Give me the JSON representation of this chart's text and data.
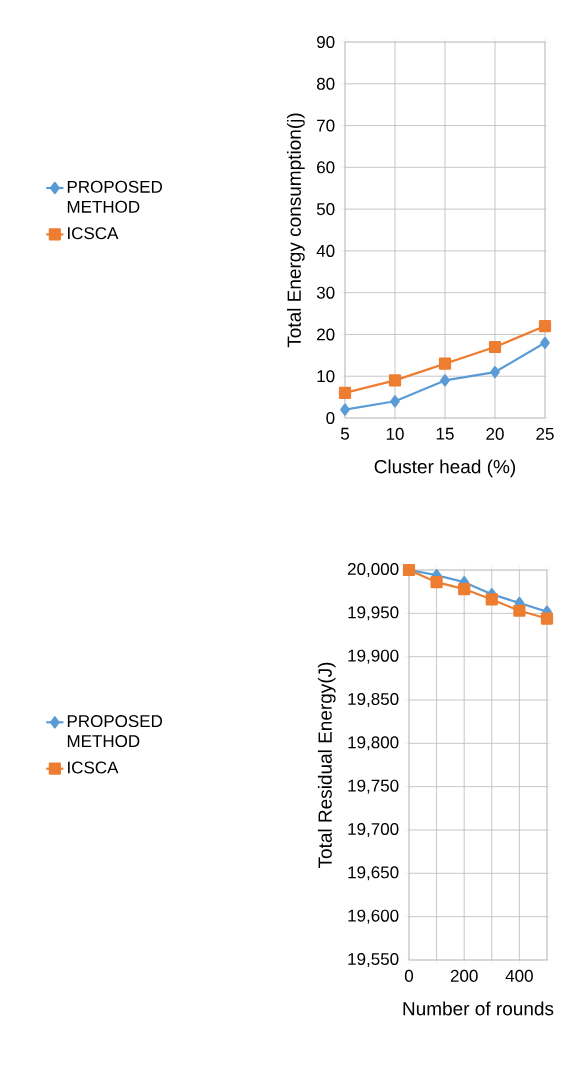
{
  "chart_data": [
    {
      "type": "line",
      "xlabel": "Cluster head (%)",
      "ylabel": "Total Energy consumption(j)",
      "categories": [
        "5",
        "10",
        "15",
        "20",
        "25"
      ],
      "series": [
        {
          "name": "PROPOSED METHOD",
          "color": "#5b9bd5",
          "marker": "diamond",
          "values": [
            2,
            4,
            9,
            11,
            18
          ]
        },
        {
          "name": "ICSCA",
          "color": "#ed7d31",
          "marker": "square",
          "values": [
            6,
            9,
            13,
            17,
            22
          ]
        }
      ],
      "ylim": [
        0,
        90
      ],
      "yticks": [
        0,
        10,
        20,
        30,
        40,
        50,
        60,
        70,
        80,
        90
      ],
      "grid": true,
      "legend": "left"
    },
    {
      "type": "line",
      "xlabel": "Number of rounds",
      "ylabel": "Total Residual Energy(J)",
      "x": [
        0,
        100,
        200,
        300,
        400,
        500
      ],
      "series": [
        {
          "name": "PROPOSED METHOD",
          "color": "#5b9bd5",
          "marker": "diamond",
          "values": [
            20000,
            19994,
            19986,
            19972,
            19962,
            19952
          ]
        },
        {
          "name": "ICSCA",
          "color": "#ed7d31",
          "marker": "square",
          "values": [
            20000,
            19986,
            19978,
            19966,
            19953,
            19944
          ]
        }
      ],
      "xlim": [
        0,
        500
      ],
      "xticks": [
        0,
        {
          "value": 100,
          "label": null
        },
        200,
        {
          "value": 300,
          "label": null
        },
        400,
        {
          "value": 500,
          "label": null
        }
      ],
      "ylim": [
        19550,
        20000
      ],
      "yticks": [
        {
          "value": 19550,
          "label": "19,550"
        },
        {
          "value": 19600,
          "label": "19,600"
        },
        {
          "value": 19650,
          "label": "19,650"
        },
        {
          "value": 19700,
          "label": "19,700"
        },
        {
          "value": 19750,
          "label": "19,750"
        },
        {
          "value": 19800,
          "label": "19,800"
        },
        {
          "value": 19850,
          "label": "19,850"
        },
        {
          "value": 19900,
          "label": "19,900"
        },
        {
          "value": 19950,
          "label": "19,950"
        },
        {
          "value": 20000,
          "label": "20,000"
        }
      ],
      "grid": true,
      "legend": "left"
    }
  ]
}
